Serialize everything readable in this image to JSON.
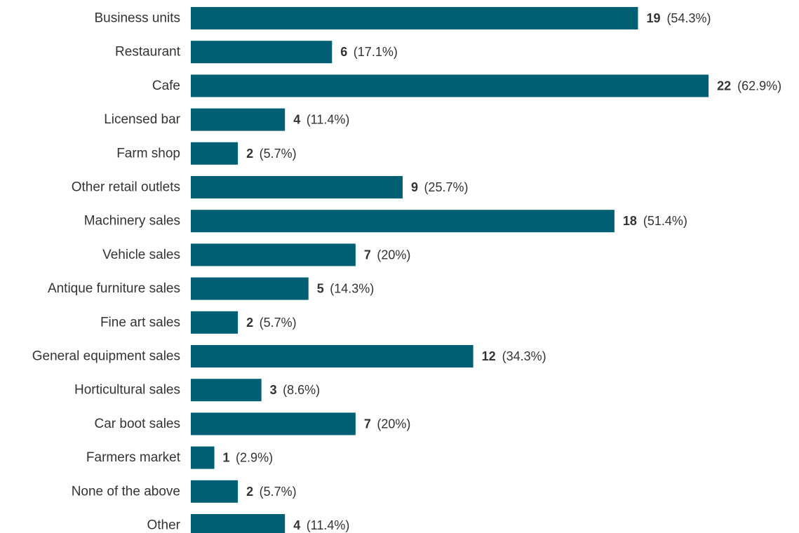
{
  "chart_data": {
    "type": "bar",
    "orientation": "horizontal",
    "title": "",
    "xlabel": "",
    "ylabel": "",
    "xlim": [
      0,
      22
    ],
    "grid": false,
    "legend": "none",
    "bar_color": "#005f73",
    "categories": [
      "Business units",
      "Restaurant",
      "Cafe",
      "Licensed bar",
      "Farm shop",
      "Other retail outlets",
      "Machinery sales",
      "Vehicle sales",
      "Antique furniture sales",
      "Fine art sales",
      "General equipment sales",
      "Horticultural sales",
      "Car boot sales",
      "Farmers market",
      "None of the above",
      "Other"
    ],
    "values": [
      19,
      6,
      22,
      4,
      2,
      9,
      18,
      7,
      5,
      2,
      12,
      3,
      7,
      1,
      2,
      4
    ],
    "value_labels": [
      "19",
      "6",
      "22",
      "4",
      "2",
      "9",
      "18",
      "7",
      "5",
      "2",
      "12",
      "3",
      "7",
      "1",
      "2",
      "4"
    ],
    "percent_labels": [
      "(54.3%)",
      "(17.1%)",
      "(62.9%)",
      "(11.4%)",
      "(5.7%)",
      "(25.7%)",
      "(51.4%)",
      "(20%)",
      "(14.3%)",
      "(5.7%)",
      "(34.3%)",
      "(8.6%)",
      "(20%)",
      "(2.9%)",
      "(5.7%)",
      "(11.4%)"
    ]
  }
}
